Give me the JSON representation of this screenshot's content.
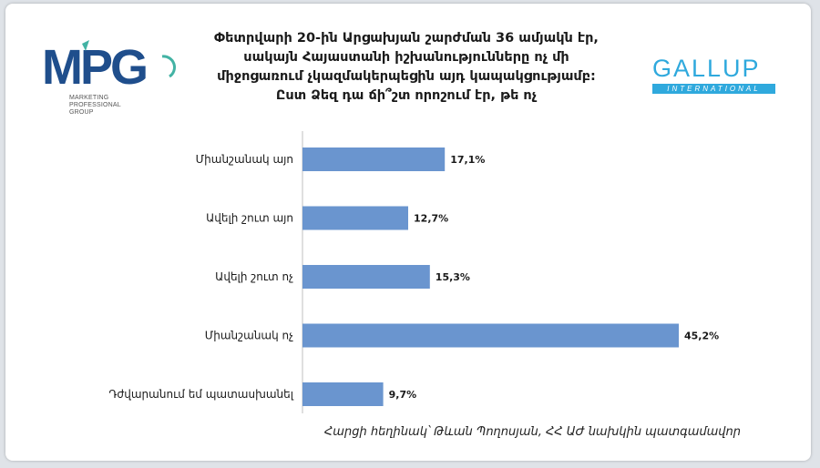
{
  "title_lines": [
    "Փետրվարի 20-ին Արցախյան շարժման 36 ամյակն էր,",
    "սակայն Հայաստանի իշխանությունները ոչ մի",
    "միջոցառում չկազմակերպեցին այդ կապակցությամբ:",
    "Ըստ Ձեզ դա ճի՞շտ որոշում էր, թե ոչ"
  ],
  "logos": {
    "mpg": {
      "mark": "MPG",
      "subtitle": [
        "MARKETING",
        "PROFESSIONAL",
        "GROUP"
      ]
    },
    "gallup": {
      "word": "GALLUP",
      "sub": "INTERNATIONAL"
    }
  },
  "colors": {
    "bar": "#6a95cf",
    "axis": "#bfbfbf",
    "mpg_blue": "#1f4e8c",
    "mpg_green": "#43b3a4",
    "gallup_blue": "#2fa9dd"
  },
  "chart_data": {
    "type": "bar",
    "orientation": "horizontal",
    "categories": [
      "Միանշանակ այո",
      "Ավելի շուտ այո",
      "Ավելի շուտ ոչ",
      "Միանշանակ ոչ",
      "Դժվարանում եմ պատասխանել"
    ],
    "values": [
      17.1,
      12.7,
      15.3,
      45.2,
      9.7
    ],
    "value_labels": [
      "17,1%",
      "12,7%",
      "15,3%",
      "45,2%",
      "9,7%"
    ],
    "unit": "%",
    "xlim": [
      0,
      45.2
    ],
    "grid": false,
    "legend": "none"
  },
  "footer": "Հարցի հեղինակ՝ Թևան Պողոսյան, ՀՀ ԱԺ նախկին պատգամավոր"
}
